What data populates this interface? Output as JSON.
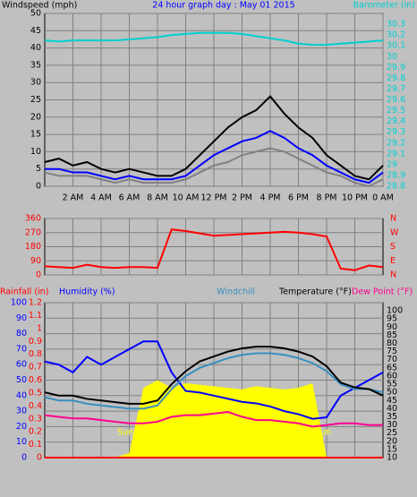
{
  "chart_data": [
    {
      "type": "line",
      "title": "24 hour graph day : May 01 2015",
      "y_label": "Windspeed (mph)",
      "y2_label": "Barometer (in)",
      "x": [
        0,
        1,
        2,
        3,
        4,
        5,
        6,
        7,
        8,
        9,
        10,
        11,
        12,
        13,
        14,
        15,
        16,
        17,
        18,
        19,
        20,
        21,
        22,
        23,
        24
      ],
      "xlim": [
        0,
        24
      ],
      "xticks": [
        {
          "value": 2,
          "label": "2 AM"
        },
        {
          "value": 4,
          "label": "4 AM"
        },
        {
          "value": 6,
          "label": "6 AM"
        },
        {
          "value": 8,
          "label": "8 AM"
        },
        {
          "value": 10,
          "label": "10 AM"
        },
        {
          "value": 12,
          "label": "12 PM"
        },
        {
          "value": 14,
          "label": "2 PM"
        },
        {
          "value": 16,
          "label": "4 PM"
        },
        {
          "value": 18,
          "label": "6 PM"
        },
        {
          "value": 20,
          "label": "8 PM"
        },
        {
          "value": 22,
          "label": "10 PM"
        },
        {
          "value": 24,
          "label": "0 AM"
        }
      ],
      "ylim": [
        0,
        50
      ],
      "yticks": [
        0,
        5,
        10,
        15,
        20,
        25,
        30,
        35,
        40,
        45,
        50
      ],
      "y2lim": [
        28.8,
        30.4
      ],
      "y2ticks": [
        28.8,
        28.9,
        29,
        29.1,
        29.2,
        29.3,
        29.4,
        29.5,
        29.6,
        29.7,
        29.8,
        29.9,
        30,
        30.1,
        30.2,
        30.3
      ],
      "grid": true,
      "series": [
        {
          "color": "#808080",
          "values": [
            4,
            3,
            3,
            3,
            2,
            1,
            2,
            1,
            1,
            1,
            2,
            4,
            6,
            7,
            9,
            10,
            11,
            10,
            8,
            6,
            4,
            3,
            1,
            0,
            2
          ]
        },
        {
          "color": "#000000",
          "values": [
            7,
            8,
            6,
            7,
            5,
            4,
            5,
            4,
            3,
            3,
            5,
            9,
            13,
            17,
            20,
            22,
            26,
            21,
            17,
            14,
            9,
            6,
            3,
            2,
            6
          ]
        },
        {
          "color": "#0000ff",
          "values": [
            5,
            5,
            4,
            4,
            3,
            2,
            3,
            2,
            2,
            2,
            3,
            6,
            9,
            11,
            13,
            14,
            16,
            14,
            11,
            9,
            6,
            4,
            2,
            1,
            4
          ]
        },
        {
          "color": "#00d0d0",
          "axis": "y2",
          "values": [
            30.15,
            30.14,
            30.15,
            30.15,
            30.15,
            30.15,
            30.16,
            30.17,
            30.18,
            30.2,
            30.21,
            30.22,
            30.22,
            30.22,
            30.21,
            30.19,
            30.17,
            30.15,
            30.12,
            30.11,
            30.11,
            30.12,
            30.13,
            30.14,
            30.15
          ]
        }
      ]
    },
    {
      "type": "line",
      "x": [
        0,
        1,
        2,
        3,
        4,
        5,
        6,
        7,
        8,
        9,
        10,
        11,
        12,
        13,
        14,
        15,
        16,
        17,
        18,
        19,
        20,
        21,
        22,
        23,
        24
      ],
      "xlim": [
        0,
        24
      ],
      "xticks": [
        2,
        4,
        6,
        8,
        10,
        12,
        14,
        16,
        18,
        20,
        22
      ],
      "ylim": [
        0,
        360
      ],
      "yticks": [
        0,
        90,
        180,
        270,
        360
      ],
      "y2lim": [
        0,
        360
      ],
      "y2ticks": [
        {
          "value": 360,
          "label": "N"
        },
        {
          "value": 270,
          "label": "W"
        },
        {
          "value": 180,
          "label": "S"
        },
        {
          "value": 90,
          "label": "E"
        },
        {
          "value": 0,
          "label": "N"
        }
      ],
      "grid": true,
      "series": [
        {
          "color": "#ff0000",
          "values": [
            55,
            50,
            45,
            65,
            50,
            45,
            50,
            50,
            45,
            290,
            280,
            265,
            250,
            255,
            260,
            265,
            270,
            275,
            270,
            260,
            245,
            40,
            30,
            60,
            50
          ]
        }
      ]
    },
    {
      "type": "line",
      "x": [
        0,
        1,
        2,
        3,
        4,
        5,
        6,
        7,
        8,
        9,
        10,
        11,
        12,
        13,
        14,
        15,
        16,
        17,
        18,
        19,
        20,
        21,
        22,
        23,
        24
      ],
      "xlim": [
        0,
        24
      ],
      "xticks": [
        2,
        4,
        6,
        8,
        10,
        12,
        14,
        16,
        18,
        20,
        22
      ],
      "ylim": [
        0,
        100
      ],
      "yticks": [
        0,
        10,
        20,
        30,
        40,
        50,
        60,
        70,
        80,
        90,
        100
      ],
      "rainfall_lim": [
        0,
        1.2
      ],
      "rainfall_ticks": [
        0,
        0.1,
        0.2,
        0.3,
        0.4,
        0.5,
        0.6,
        0.7,
        0.8,
        0.9,
        1,
        1.1,
        1.2
      ],
      "y2lim": [
        10,
        105
      ],
      "y2ticks": [
        10,
        15,
        20,
        25,
        30,
        35,
        40,
        45,
        50,
        55,
        60,
        65,
        70,
        75,
        80,
        85,
        90,
        95,
        100
      ],
      "grid": true,
      "annotations": [
        {
          "text": "Sun",
          "x": 6.3
        },
        {
          "text": "Sun",
          "x": 20.3
        }
      ],
      "series": [
        {
          "color": "#ffff00",
          "area": true,
          "values": [
            0,
            0,
            0,
            0,
            0,
            0,
            3,
            45,
            50,
            45,
            48,
            47,
            46,
            45,
            44,
            46,
            45,
            44,
            45,
            48,
            0,
            0,
            0,
            0,
            0
          ]
        },
        {
          "name": "Rainfall (in)",
          "color": "#ff0000",
          "axis": "rainfall",
          "values": [
            0,
            0,
            0,
            0,
            0,
            0,
            0,
            0,
            0,
            0,
            0,
            0,
            0,
            0,
            0,
            0,
            0,
            0,
            0,
            0,
            0,
            0,
            0,
            0,
            0
          ]
        },
        {
          "name": "Humidity (%)",
          "color": "#0000ff",
          "values": [
            62,
            60,
            55,
            65,
            60,
            65,
            70,
            75,
            75,
            55,
            43,
            42,
            40,
            38,
            36,
            35,
            33,
            30,
            28,
            25,
            26,
            40,
            45,
            50,
            55
          ]
        },
        {
          "name": "Windchill",
          "color": "#3a8fc0",
          "axis": "y2",
          "values": [
            47,
            45,
            45,
            43,
            42,
            41,
            40,
            40,
            42,
            52,
            60,
            65,
            68,
            71,
            73,
            74,
            74,
            73,
            71,
            68,
            63,
            55,
            52,
            52,
            50
          ]
        },
        {
          "name": "Dew Point (°F)",
          "color": "#ff0090",
          "axis": "y2",
          "values": [
            36,
            35,
            34,
            34,
            33,
            32,
            31,
            31,
            32,
            35,
            36,
            36,
            37,
            38,
            35,
            33,
            33,
            32,
            31,
            29,
            30,
            31,
            31,
            30,
            30
          ]
        },
        {
          "name": "Temperature (°F)",
          "color": "#000000",
          "axis": "y2",
          "values": [
            50,
            48,
            48,
            46,
            45,
            44,
            43,
            43,
            45,
            55,
            63,
            69,
            72,
            75,
            77,
            78,
            78,
            77,
            75,
            72,
            66,
            56,
            53,
            52,
            48
          ]
        }
      ]
    }
  ]
}
